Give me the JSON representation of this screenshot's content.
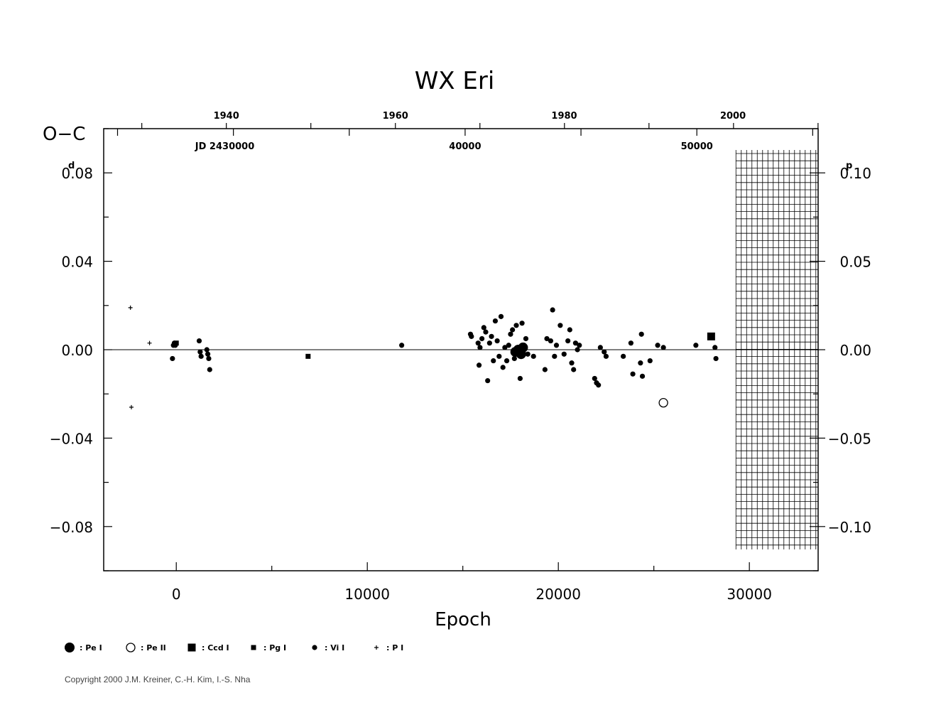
{
  "chart_data": {
    "type": "scatter",
    "title": "WX  Eri",
    "ylabel": "O−C",
    "xlabel": "Epoch",
    "xlim": [
      -3800,
      33600
    ],
    "ylim": [
      -0.1,
      0.1
    ],
    "grid": false,
    "x_ticks": [
      0,
      10000,
      20000,
      30000
    ],
    "x_tick_labels": [
      "0",
      "10000",
      "20000",
      "30000"
    ],
    "y_left_ticks": [
      0.08,
      0.04,
      0.0,
      -0.04,
      -0.08
    ],
    "y_left_tick_labels": [
      "0.08",
      "0.04",
      "0.00",
      "−0.04",
      "−0.08"
    ],
    "y_left_unit": "d",
    "y_right_ticks": [
      0.1,
      0.05,
      0.0,
      -0.05,
      -0.1
    ],
    "y_right_tick_labels": [
      "0.10",
      "0.05",
      "0.00",
      "−0.05",
      "−0.10"
    ],
    "y_right_unit": "p",
    "y_right_period_days": 0.8,
    "top_axis_years": [
      {
        "label": "1940",
        "x": 2620
      },
      {
        "label": "1960",
        "x": 11470
      },
      {
        "label": "1980",
        "x": 20310
      },
      {
        "label": "2000",
        "x": 29140
      }
    ],
    "top_axis_jd": [
      {
        "label": "JD  2430000",
        "x": 2540
      },
      {
        "label": "40000",
        "x": 15120
      },
      {
        "label": "50000",
        "x": 27250
      }
    ],
    "hatched_region_x": [
      29000,
      33600
    ],
    "legend": [
      {
        "symbol": "big-filled-circle",
        "label": ": Pe I"
      },
      {
        "symbol": "open-circle",
        "label": ": Pe II"
      },
      {
        "symbol": "big-filled-square",
        "label": ": Ccd I"
      },
      {
        "symbol": "small-filled-square",
        "label": ": Pg I"
      },
      {
        "symbol": "small-filled-circle",
        "label": ": Vi I"
      },
      {
        "symbol": "plus",
        "label": ": P I"
      }
    ],
    "series": [
      {
        "name": "Pe I",
        "symbol": "big-filled-circle",
        "x": [
          17750,
          17900,
          18050,
          18150
        ],
        "y": [
          -0.001,
          0.0,
          -0.002,
          0.001
        ]
      },
      {
        "name": "Pe II",
        "symbol": "open-circle",
        "x": [
          25500
        ],
        "y": [
          -0.024
        ]
      },
      {
        "name": "Ccd I",
        "symbol": "big-filled-square",
        "x": [
          28000
        ],
        "y": [
          0.006
        ]
      },
      {
        "name": "Pg I",
        "symbol": "small-filled-square",
        "x": [
          0,
          6900
        ],
        "y": [
          0.003,
          -0.003
        ]
      },
      {
        "name": "Vi I",
        "symbol": "small-filled-circle",
        "x": [
          -200,
          -150,
          -100,
          -50,
          1200,
          1250,
          1300,
          1600,
          1650,
          1700,
          1750,
          11800,
          15400,
          15450,
          15800,
          15850,
          15900,
          16000,
          16100,
          16200,
          16300,
          16400,
          16500,
          16600,
          16700,
          16800,
          16900,
          17000,
          17100,
          17200,
          17300,
          17400,
          17500,
          17600,
          17700,
          17800,
          18000,
          18100,
          18200,
          18300,
          18400,
          18700,
          19300,
          19400,
          19600,
          19700,
          19800,
          19900,
          20100,
          20300,
          20500,
          20600,
          20700,
          20800,
          20900,
          21000,
          21100,
          21900,
          22000,
          22100,
          22200,
          22400,
          22500,
          23400,
          23800,
          23900,
          24300,
          24350,
          24400,
          24800,
          25200,
          25500,
          27200,
          28200,
          28250
        ],
        "y": [
          -0.004,
          0.002,
          0.003,
          0.002,
          0.004,
          -0.001,
          -0.003,
          0.0,
          -0.002,
          -0.004,
          -0.009,
          0.002,
          0.007,
          0.006,
          0.003,
          -0.007,
          0.001,
          0.005,
          0.01,
          0.008,
          -0.014,
          0.003,
          0.006,
          -0.005,
          0.013,
          0.004,
          -0.003,
          0.015,
          -0.008,
          0.001,
          -0.005,
          0.002,
          0.007,
          0.009,
          -0.004,
          0.011,
          -0.013,
          0.012,
          0.002,
          0.005,
          -0.002,
          -0.003,
          -0.009,
          0.005,
          0.004,
          0.018,
          -0.003,
          0.002,
          0.011,
          -0.002,
          0.004,
          0.009,
          -0.006,
          -0.009,
          0.003,
          0.0,
          0.002,
          -0.013,
          -0.015,
          -0.016,
          0.001,
          -0.001,
          -0.003,
          -0.003,
          0.003,
          -0.011,
          -0.006,
          0.007,
          -0.012,
          -0.005,
          0.002,
          0.001,
          0.002,
          0.001,
          -0.004
        ]
      },
      {
        "name": "P I",
        "symbol": "plus",
        "x": [
          -2400,
          -2350,
          -1400
        ],
        "y": [
          0.019,
          -0.026,
          0.003
        ]
      }
    ]
  },
  "copyright": "Copyright 2000 J.M. Kreiner, C.-H. Kim, I.-S. Nha"
}
